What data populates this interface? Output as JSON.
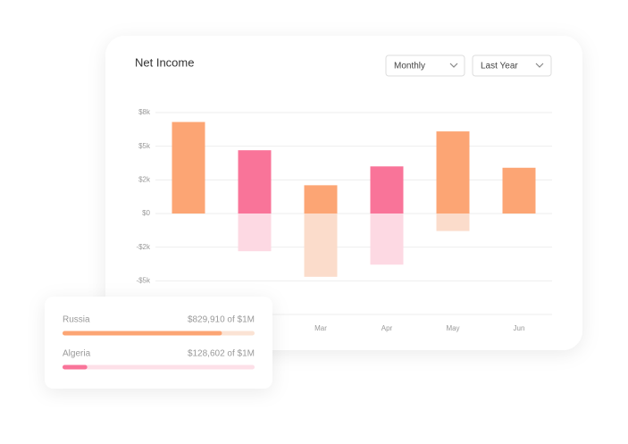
{
  "chart_data": {
    "type": "bar",
    "title": "Net Income",
    "categories": [
      null,
      null,
      "Mar",
      "Apr",
      "May",
      "Jun"
    ],
    "series": [
      {
        "values": [
          6.8,
          4.7,
          2.1,
          3.5,
          6.1,
          3.4
        ],
        "colors": [
          "#fca574",
          "#f97499",
          "#fca574",
          "#f97499",
          "#fca574",
          "#fca574"
        ]
      },
      {
        "values": [
          null,
          -2.8,
          -4.7,
          -3.8,
          -1.3,
          null
        ],
        "colors": [
          "#fbdccb",
          "#fdd9e3",
          "#fbdccb",
          "#fdd9e3",
          "#fbdccb",
          "#fbdccb"
        ]
      }
    ],
    "ylim": [
      -7.5,
      7.5
    ],
    "yticks": [
      {
        "value": 7.5,
        "label": "$8k"
      },
      {
        "value": 5,
        "label": "$5k"
      },
      {
        "value": 2.5,
        "label": "$2k"
      },
      {
        "value": 0,
        "label": "$0"
      },
      {
        "value": -2.5,
        "label": "-$2k"
      },
      {
        "value": -5,
        "label": "-$5k"
      }
    ],
    "grid": true
  },
  "filters": [
    "Monthly",
    "Last Year"
  ],
  "countries": {
    "max": 1000000,
    "rows": [
      {
        "name": "Russia",
        "value": 829910,
        "label": "$829,910 of $1M",
        "color": "#fca574",
        "track": "#fbe3d4"
      },
      {
        "name": "Algeria",
        "value": 128602,
        "label": "$128,602 of $1M",
        "color": "#f97499",
        "track": "#fde0e8"
      }
    ]
  }
}
